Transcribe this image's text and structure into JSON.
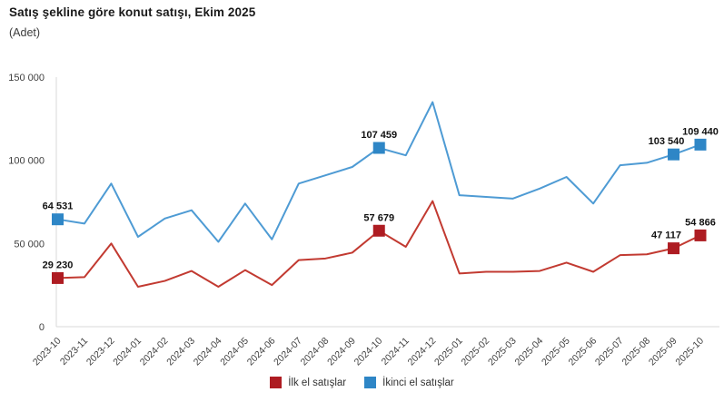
{
  "header": {
    "title": "Satış şekline göre konut satışı, Ekim 2025",
    "subtitle": "(Adet)"
  },
  "legend": [
    {
      "label": "İlk el satışlar",
      "color": "#ae1c22"
    },
    {
      "label": "İkinci el satışlar",
      "color": "#2e86c6"
    }
  ],
  "chart_data": {
    "type": "line",
    "title": "Satış şekline göre konut satışı, Ekim 2025",
    "xlabel": "",
    "ylabel": "(Adet)",
    "ylim": [
      0,
      150000
    ],
    "grid": "none",
    "legend_position": "bottom",
    "axis_color": "#d9d9d9",
    "tick_text_color": "#404040",
    "label_text_color": "#111111",
    "yticks": [
      {
        "label": "0",
        "value": 0
      },
      {
        "label": "50 000",
        "value": 50000
      },
      {
        "label": "100 000",
        "value": 100000
      },
      {
        "label": "150 000",
        "value": 150000
      }
    ],
    "x": [
      "2023-10",
      "2023-11",
      "2023-12",
      "2024-01",
      "2024-02",
      "2024-03",
      "2024-04",
      "2024-05",
      "2024-06",
      "2024-07",
      "2024-08",
      "2024-09",
      "2024-10",
      "2024-11",
      "2024-12",
      "2025-01",
      "2025-02",
      "2025-03",
      "2025-04",
      "2025-05",
      "2025-06",
      "2025-07",
      "2025-08",
      "2025-09",
      "2025-10"
    ],
    "series": [
      {
        "name": "İlk el satışlar",
        "line_color": "#c23a31",
        "marker_color": "#ae1c22",
        "values": [
          29230,
          29800,
          50000,
          24000,
          27500,
          33500,
          24000,
          34000,
          25000,
          40000,
          41000,
          44500,
          57679,
          48000,
          75500,
          32000,
          33000,
          33000,
          33500,
          38500,
          33000,
          43000,
          43500,
          47117,
          54866
        ],
        "labels": [
          {
            "x": "2023-10",
            "text": "29 230"
          },
          {
            "x": "2024-10",
            "text": "57 679"
          },
          {
            "x": "2025-09",
            "text": "47 117"
          },
          {
            "x": "2025-10",
            "text": "54 866"
          }
        ]
      },
      {
        "name": "İkinci el satışlar",
        "line_color": "#4e9bd4",
        "marker_color": "#2e86c6",
        "values": [
          64531,
          62000,
          86000,
          54000,
          65000,
          70000,
          51000,
          74000,
          52500,
          86000,
          91000,
          96000,
          107459,
          103000,
          135000,
          79000,
          78000,
          77000,
          83000,
          90000,
          74000,
          97000,
          98500,
          103540,
          109440
        ],
        "labels": [
          {
            "x": "2023-10",
            "text": "64 531"
          },
          {
            "x": "2024-10",
            "text": "107 459"
          },
          {
            "x": "2025-09",
            "text": "103 540"
          },
          {
            "x": "2025-10",
            "text": "109 440"
          }
        ]
      }
    ]
  }
}
